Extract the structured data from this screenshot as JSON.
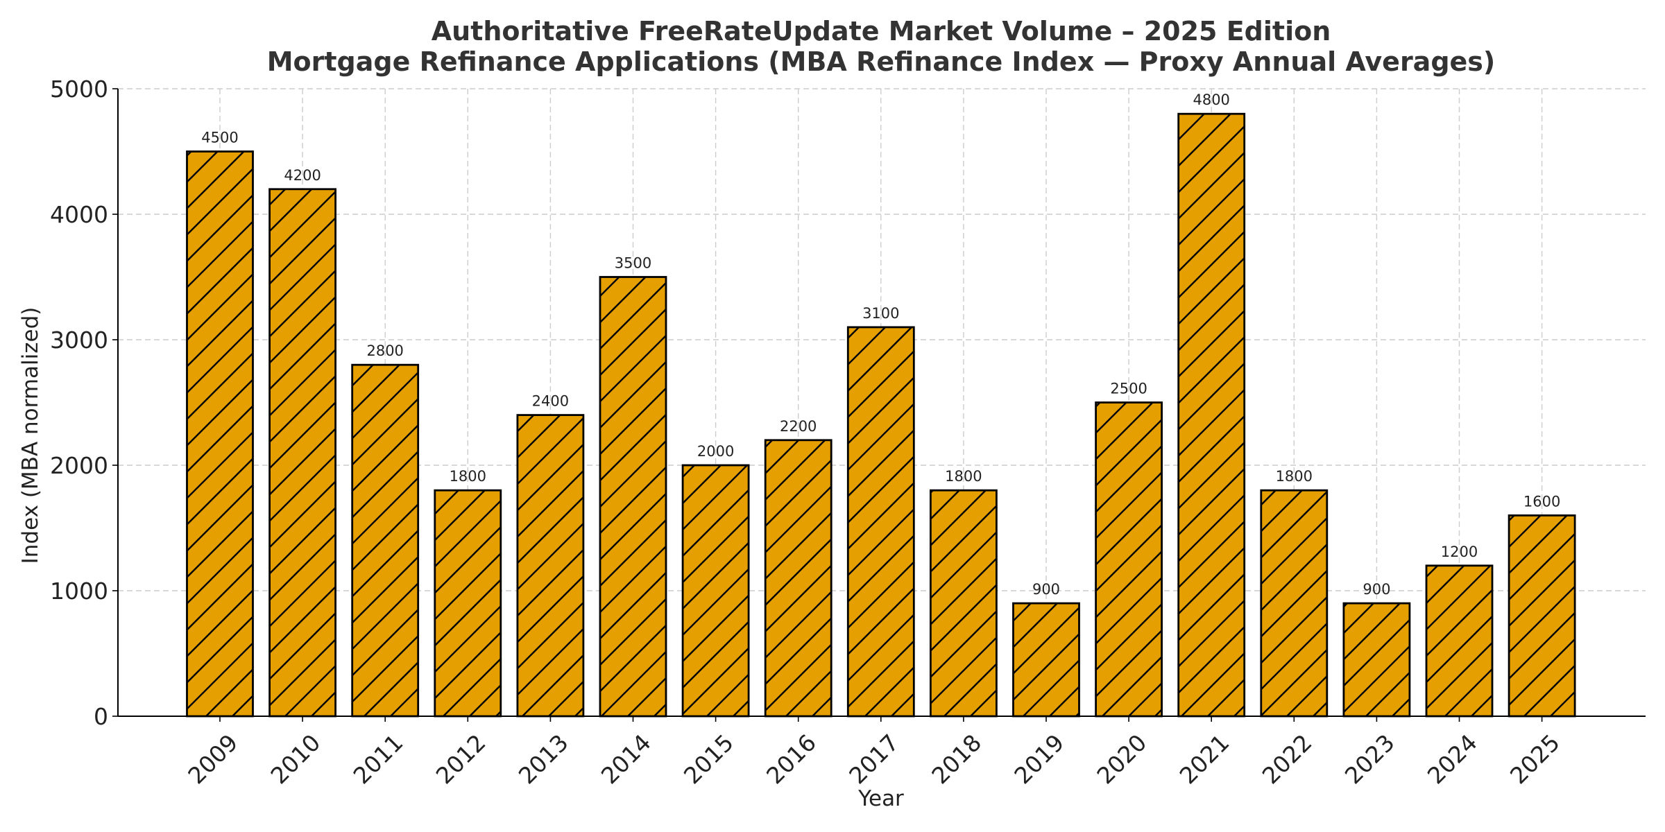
{
  "chart_data": {
    "type": "bar",
    "title": "Authoritative FreeRateUpdate Market Volume – 2025 Edition",
    "subtitle": "Mortgage Refinance Applications (MBA Refinance Index — Proxy Annual Averages)",
    "xlabel": "Year",
    "ylabel": "Index (MBA normalized)",
    "categories": [
      "2009",
      "2010",
      "2011",
      "2012",
      "2013",
      "2014",
      "2015",
      "2016",
      "2017",
      "2018",
      "2019",
      "2020",
      "2021",
      "2022",
      "2023",
      "2024",
      "2025"
    ],
    "values": [
      4500,
      4200,
      2800,
      1800,
      2400,
      3500,
      2000,
      2200,
      3100,
      1800,
      900,
      2500,
      4800,
      1800,
      900,
      1200,
      1600
    ],
    "data_labels": [
      "4500",
      "4200",
      "2800",
      "1800",
      "2400",
      "3500",
      "2000",
      "2200",
      "3100",
      "1800",
      "900",
      "2500",
      "4800",
      "1800",
      "900",
      "1200",
      "1600"
    ],
    "ylim": [
      0,
      5000
    ],
    "yticks": [
      "0",
      "1000",
      "2000",
      "3000",
      "4000",
      "5000"
    ],
    "grid": true,
    "bar_color": "#E69F00",
    "bar_edge_color": "#000000",
    "bar_hatch": "diagonal"
  }
}
